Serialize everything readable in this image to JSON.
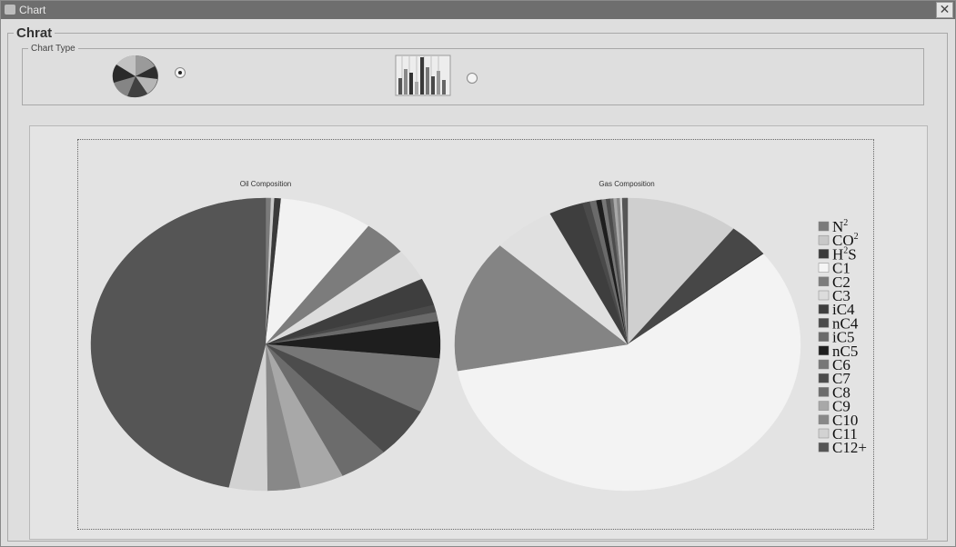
{
  "window": {
    "title": "Chart",
    "close_label": "✕"
  },
  "outer_group": {
    "label": "Chrat"
  },
  "chart_type_group": {
    "label": "Chart Type",
    "options": [
      {
        "id": "pie",
        "icon": "pie-chart-icon",
        "selected": true
      },
      {
        "id": "bar",
        "icon": "bar-chart-icon",
        "selected": false
      }
    ]
  },
  "chart_data": [
    {
      "type": "pie",
      "title": "Oil Composition",
      "categories": [
        "N2",
        "CO2",
        "H2S",
        "C1",
        "C2",
        "C3",
        "iC4",
        "nC4",
        "iC5",
        "nC5",
        "C6",
        "C7",
        "C8",
        "C9",
        "C10",
        "C11",
        "C12+"
      ],
      "values": [
        0.5,
        0.3,
        0.6,
        8.5,
        4.0,
        3.5,
        3.0,
        0.8,
        1.0,
        4.0,
        6.0,
        5.5,
        4.5,
        4.0,
        3.0,
        3.5,
        46.0
      ],
      "colors": [
        "#7a7a7a",
        "#c8c8c8",
        "#3a3a3a",
        "#f2f2f2",
        "#7c7c7c",
        "#dcdcdc",
        "#3e3e3e",
        "#4a4a4a",
        "#6a6a6a",
        "#1e1e1e",
        "#777777",
        "#4c4c4c",
        "#6c6c6c",
        "#a8a8a8",
        "#888888",
        "#d2d2d2",
        "#555555"
      ]
    },
    {
      "type": "pie",
      "title": "Gas Composition",
      "categories": [
        "N2",
        "CO2",
        "H2S",
        "C1",
        "C2",
        "C3",
        "iC4",
        "nC4",
        "iC5",
        "nC5",
        "C6",
        "C7",
        "C8",
        "C9",
        "C10",
        "C11",
        "C12+"
      ],
      "values": [
        10.5,
        3.8,
        0.1,
        57.7,
        14.7,
        5.8,
        3.2,
        0.7,
        0.6,
        0.5,
        0.4,
        0.4,
        0.3,
        0.3,
        0.3,
        0.2,
        0.5
      ],
      "colors": [
        "#cfcfcf",
        "#474747",
        "#333333",
        "#f3f3f3",
        "#848484",
        "#e0e0e0",
        "#3e3e3e",
        "#4a4a4a",
        "#6a6a6a",
        "#1e1e1e",
        "#777777",
        "#4c4c4c",
        "#6c6c6c",
        "#a8a8a8",
        "#888888",
        "#d2d2d2",
        "#555555"
      ]
    }
  ],
  "legend": {
    "items": [
      {
        "label": "N",
        "sub": "2",
        "color": "#7a7a7a"
      },
      {
        "label": "CO",
        "sub": "2",
        "color": "#c8c8c8"
      },
      {
        "label": "H",
        "sub": "2",
        "tail": "S",
        "color": "#3a3a3a"
      },
      {
        "label": "C1",
        "color": "#f5f5f5"
      },
      {
        "label": "C2",
        "color": "#7c7c7c"
      },
      {
        "label": "C3",
        "color": "#dcdcdc"
      },
      {
        "label": "iC4",
        "color": "#3e3e3e"
      },
      {
        "label": "nC4",
        "color": "#4a4a4a"
      },
      {
        "label": "iC5",
        "color": "#6a6a6a"
      },
      {
        "label": "nC5",
        "color": "#1e1e1e"
      },
      {
        "label": "C6",
        "color": "#777777"
      },
      {
        "label": "C7",
        "color": "#4c4c4c"
      },
      {
        "label": "C8",
        "color": "#6c6c6c"
      },
      {
        "label": "C9",
        "color": "#a8a8a8"
      },
      {
        "label": "C10",
        "color": "#888888"
      },
      {
        "label": "C11",
        "color": "#d2d2d2"
      },
      {
        "label": "C12+",
        "color": "#555555"
      }
    ]
  }
}
